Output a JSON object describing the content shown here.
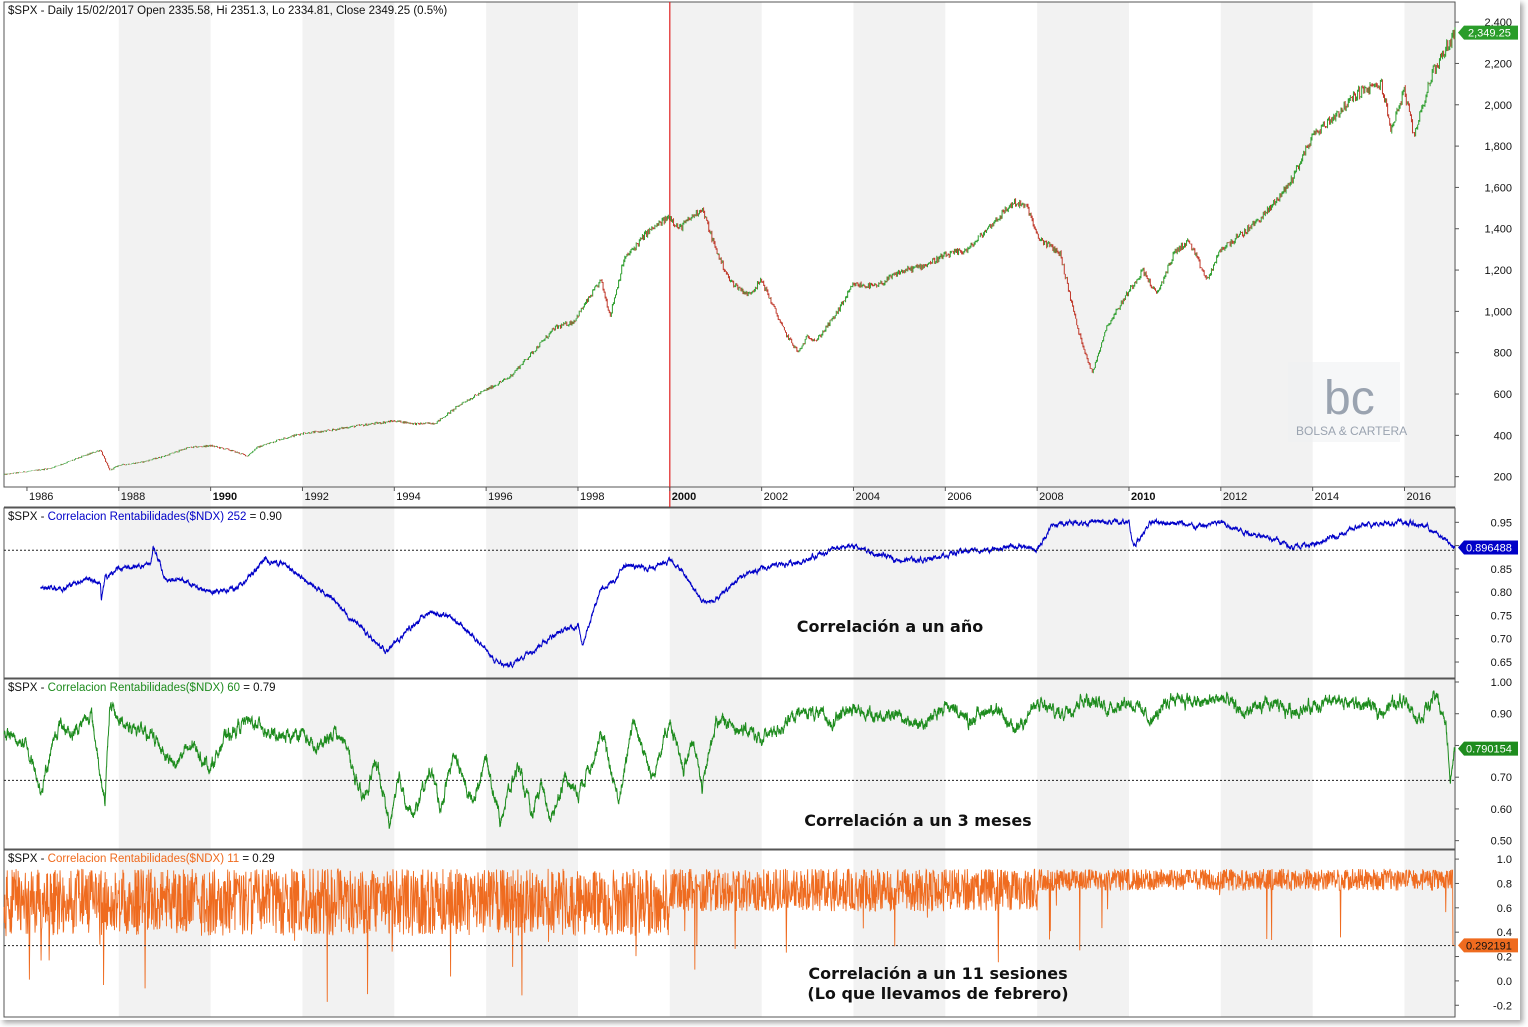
{
  "colors": {
    "price_up": "#2e9e2e",
    "price_down": "#c0392b",
    "corr252": "#0000c8",
    "corr60": "#1e8c1e",
    "corr11": "#ef6b1f",
    "marker": "#e02020",
    "band": "#f2f2f2",
    "watermark": "#9aa3b0"
  },
  "chart_data": [
    {
      "type": "line",
      "title": "$SPX - Daily 15/02/2017 Open 2335.58, Hi 2351.3, Lo 2334.81, Close 2349.25 (0.5%)",
      "ylim": [
        150,
        2420
      ],
      "y_ticks": [
        "200",
        "400",
        "600",
        "800",
        "1,000",
        "1,200",
        "1,400",
        "1,600",
        "1,800",
        "2,000",
        "2,200",
        "2,400"
      ],
      "last_value_label": "2,349.25",
      "x_tick_labels": [
        "1986",
        "1988",
        "1990",
        "1992",
        "1994",
        "1996",
        "1998",
        "2000",
        "2002",
        "2004",
        "2006",
        "2008",
        "2010",
        "2012",
        "2014",
        "2016"
      ],
      "bold_x_ticks": [
        "1990",
        "2000",
        "2010"
      ],
      "x": [
        1985.5,
        1986,
        1986.5,
        1987,
        1987.6,
        1987.8,
        1988,
        1988.5,
        1989,
        1989.5,
        1990,
        1990.4,
        1990.8,
        1991,
        1991.5,
        1992,
        1992.5,
        1993,
        1993.5,
        1994,
        1994.5,
        1994.9,
        1995.5,
        1996,
        1996.5,
        1997,
        1997.5,
        1997.9,
        1998.5,
        1998.7,
        1999,
        1999.5,
        2000,
        2000.2,
        2000.7,
        2001,
        2001.3,
        2001.7,
        2002,
        2002.5,
        2002.8,
        2003,
        2003.2,
        2003.6,
        2004,
        2004.5,
        2005,
        2005.5,
        2006,
        2006.5,
        2007,
        2007.5,
        2007.8,
        2008,
        2008.5,
        2008.9,
        2009.2,
        2009.5,
        2010,
        2010.3,
        2010.6,
        2011,
        2011.3,
        2011.7,
        2012,
        2012.5,
        2013,
        2013.5,
        2014,
        2014.5,
        2015,
        2015.5,
        2015.7,
        2016,
        2016.2,
        2016.6,
        2017.1
      ],
      "values": [
        210,
        225,
        240,
        280,
        330,
        230,
        255,
        270,
        300,
        340,
        350,
        330,
        300,
        340,
        380,
        410,
        420,
        440,
        455,
        470,
        455,
        460,
        560,
        620,
        680,
        800,
        920,
        950,
        1150,
        980,
        1250,
        1380,
        1460,
        1400,
        1500,
        1300,
        1150,
        1080,
        1150,
        900,
        800,
        880,
        860,
        980,
        1130,
        1120,
        1190,
        1220,
        1270,
        1300,
        1420,
        1530,
        1500,
        1360,
        1280,
        900,
        700,
        920,
        1100,
        1200,
        1080,
        1290,
        1340,
        1150,
        1300,
        1380,
        1480,
        1620,
        1850,
        1950,
        2060,
        2100,
        1880,
        2070,
        1850,
        2150,
        2349
      ]
    },
    {
      "type": "line",
      "title": "$SPX - Correlacion Rentabilidades($NDX)  252 = 0.90",
      "ylim": [
        0.62,
        0.97
      ],
      "y_ticks": [
        "0.65",
        "0.70",
        "0.75",
        "0.80",
        "0.85",
        "0.90",
        "0.95"
      ],
      "reference_line": 0.89,
      "last_value_label": "0.896488",
      "annotation": "Correlación a un año",
      "x": [
        1986.3,
        1986.8,
        1987.3,
        1987.6,
        1987.62,
        1987.7,
        1988,
        1988.7,
        1988.75,
        1989,
        1989.5,
        1990,
        1990.6,
        1991.2,
        1991.6,
        1992,
        1992.5,
        1993,
        1993.4,
        1993.8,
        1994.4,
        1994.8,
        1995.3,
        1995.8,
        1996.2,
        1996.5,
        1996.9,
        1997.5,
        1998,
        1998.1,
        1998.5,
        1998.8,
        1999,
        1999.5,
        2000,
        2000.3,
        2000.7,
        2001,
        2001.5,
        2002,
        2002.5,
        2003,
        2003.5,
        2004,
        2004.5,
        2005,
        2005.5,
        2006,
        2006.5,
        2007,
        2007.5,
        2008,
        2008.3,
        2008.6,
        2009,
        2009.5,
        2010,
        2010.1,
        2010.5,
        2011,
        2011.5,
        2012,
        2012.5,
        2013,
        2013.5,
        2014,
        2014.5,
        2015,
        2015.5,
        2016,
        2016.5,
        2017.1
      ],
      "values": [
        0.81,
        0.81,
        0.83,
        0.82,
        0.78,
        0.83,
        0.85,
        0.86,
        0.9,
        0.83,
        0.82,
        0.8,
        0.81,
        0.87,
        0.86,
        0.83,
        0.8,
        0.75,
        0.71,
        0.67,
        0.73,
        0.76,
        0.74,
        0.7,
        0.65,
        0.64,
        0.67,
        0.71,
        0.73,
        0.69,
        0.81,
        0.82,
        0.86,
        0.85,
        0.87,
        0.84,
        0.78,
        0.78,
        0.83,
        0.85,
        0.86,
        0.87,
        0.89,
        0.9,
        0.88,
        0.87,
        0.87,
        0.88,
        0.89,
        0.89,
        0.9,
        0.89,
        0.94,
        0.95,
        0.95,
        0.95,
        0.95,
        0.9,
        0.95,
        0.95,
        0.94,
        0.95,
        0.93,
        0.92,
        0.9,
        0.9,
        0.92,
        0.94,
        0.95,
        0.95,
        0.94,
        0.896
      ]
    },
    {
      "type": "line",
      "title": "$SPX - Correlacion Rentabilidades($NDX)  60 = 0.79",
      "ylim": [
        0.48,
        1.0
      ],
      "y_ticks": [
        "0.50",
        "0.60",
        "0.70",
        "0.80",
        "0.90",
        "1.00"
      ],
      "reference_line": 0.69,
      "last_value_label": "0.790154",
      "annotation": "Correlación a un 3 meses",
      "x": [
        1985.5,
        1986,
        1986.3,
        1986.7,
        1987,
        1987.4,
        1987.7,
        1987.8,
        1988,
        1988.4,
        1988.8,
        1989.2,
        1989.6,
        1990,
        1990.3,
        1990.8,
        1991.1,
        1991.5,
        1992,
        1992.3,
        1992.7,
        1993,
        1993.3,
        1993.6,
        1993.9,
        1994.1,
        1994.4,
        1994.8,
        1995,
        1995.3,
        1995.7,
        1996,
        1996.3,
        1996.7,
        1997,
        1997.2,
        1997.4,
        1997.7,
        1998,
        1998.3,
        1998.5,
        1998.9,
        1999.2,
        1999.6,
        2000,
        2000.3,
        2000.5,
        2000.7,
        2001,
        2001.5,
        2002,
        2002.5,
        2003,
        2003.5,
        2004,
        2004.5,
        2005,
        2005.5,
        2006,
        2006.5,
        2007,
        2007.5,
        2008,
        2008.5,
        2009,
        2009.5,
        2010,
        2010.5,
        2011,
        2011.5,
        2012,
        2012.5,
        2013,
        2013.5,
        2014,
        2014.5,
        2015,
        2015.5,
        2016,
        2016.3,
        2016.7,
        2016.9,
        2017.0,
        2017.1
      ],
      "values": [
        0.84,
        0.8,
        0.66,
        0.87,
        0.84,
        0.9,
        0.62,
        0.92,
        0.88,
        0.85,
        0.82,
        0.74,
        0.8,
        0.73,
        0.82,
        0.88,
        0.86,
        0.82,
        0.84,
        0.78,
        0.85,
        0.78,
        0.62,
        0.75,
        0.55,
        0.7,
        0.57,
        0.73,
        0.6,
        0.77,
        0.62,
        0.76,
        0.57,
        0.74,
        0.57,
        0.68,
        0.56,
        0.7,
        0.65,
        0.75,
        0.84,
        0.62,
        0.89,
        0.7,
        0.87,
        0.72,
        0.83,
        0.66,
        0.88,
        0.86,
        0.82,
        0.87,
        0.91,
        0.88,
        0.92,
        0.89,
        0.9,
        0.86,
        0.93,
        0.88,
        0.92,
        0.85,
        0.93,
        0.9,
        0.95,
        0.92,
        0.94,
        0.88,
        0.96,
        0.93,
        0.95,
        0.9,
        0.93,
        0.91,
        0.92,
        0.94,
        0.93,
        0.91,
        0.95,
        0.88,
        0.96,
        0.86,
        0.7,
        0.79
      ]
    },
    {
      "type": "line",
      "title": "$SPX - Correlacion Rentabilidades($NDX)  11 = 0.29",
      "ylim": [
        -0.28,
        1.05
      ],
      "y_ticks": [
        "-0.2",
        "0.0",
        "0.2",
        "0.4",
        "0.6",
        "0.8",
        "1.0"
      ],
      "reference_line": 0.29,
      "last_value_label": "0.292191",
      "annotation_lines": [
        "Correlación a un 11 sesiones",
        "(Lo que llevamos de febrero)"
      ]
    }
  ],
  "watermark": {
    "logo": "bc",
    "text": "BOLSA & CARTERA"
  }
}
